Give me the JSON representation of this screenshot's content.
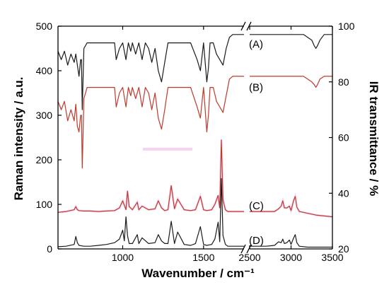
{
  "chart_data": {
    "type": "line",
    "title": "",
    "xlabel": "Wavenumber / cm⁻¹",
    "ylabel_left": "Raman intensity / a.u.",
    "ylabel_right": "IR transmittance / %",
    "x_axis_broken": true,
    "x_segments": [
      {
        "range": [
          600,
          1750
        ],
        "ticks": [
          1000,
          1500
        ],
        "tick_labels": [
          "1000",
          "1500"
        ]
      },
      {
        "range": [
          2500,
          3500
        ],
        "ticks": [
          2500,
          3000,
          3500
        ],
        "tick_labels": [
          "2500",
          "3000",
          "3500"
        ]
      }
    ],
    "ylim_left": [
      0,
      500
    ],
    "yticks_left": [
      0,
      100,
      200,
      300,
      400,
      500
    ],
    "ylim_right": [
      20,
      100
    ],
    "yticks_right": [
      20,
      40,
      60,
      80,
      100
    ],
    "grid": false,
    "colors": {
      "black": "#1a1a1a",
      "red": "#c0392b",
      "red_band": "#f2b6e8"
    },
    "series": [
      {
        "label": "(A)",
        "axis": "right",
        "color": "#1a1a1a",
        "x": [
          600,
          620,
          640,
          660,
          680,
          700,
          710,
          720,
          730,
          740,
          745,
          750,
          760,
          780,
          800,
          820,
          850,
          900,
          950,
          960,
          980,
          1000,
          1020,
          1035,
          1050,
          1060,
          1080,
          1100,
          1120,
          1140,
          1160,
          1180,
          1200,
          1220,
          1240,
          1260,
          1280,
          1300,
          1330,
          1380,
          1420,
          1460,
          1480,
          1500,
          1520,
          1530,
          1540,
          1560,
          1580,
          1600,
          1620,
          1640,
          1660,
          1680,
          1700,
          1750,
          2500,
          2600,
          2700,
          2800,
          2900,
          2950,
          3000,
          3050,
          3100,
          3150,
          3200,
          3250,
          3280,
          3300,
          3320,
          3350,
          3400,
          3450,
          3500
        ],
        "y": [
          91,
          88,
          91,
          86,
          90,
          87,
          90,
          86,
          82,
          88,
          88,
          70,
          92,
          94,
          94,
          94,
          94,
          94,
          94,
          88,
          92,
          94,
          88,
          94,
          91,
          94,
          90,
          94,
          88,
          94,
          92,
          87,
          92,
          84,
          80,
          87,
          94,
          94,
          94,
          94,
          94,
          88,
          84,
          94,
          80,
          85,
          94,
          94,
          90,
          88,
          86,
          92,
          96,
          97,
          97,
          97,
          97,
          97,
          97,
          97,
          97,
          97,
          97,
          97,
          97,
          97,
          96,
          95,
          93,
          92,
          93,
          95,
          97,
          97,
          97
        ]
      },
      {
        "label": "(B)",
        "axis": "right",
        "color": "#c0392b",
        "x": [
          600,
          620,
          640,
          660,
          680,
          700,
          710,
          720,
          730,
          740,
          745,
          750,
          760,
          780,
          800,
          820,
          850,
          900,
          950,
          960,
          980,
          1000,
          1020,
          1035,
          1050,
          1060,
          1080,
          1100,
          1120,
          1140,
          1160,
          1180,
          1200,
          1220,
          1240,
          1260,
          1280,
          1300,
          1330,
          1380,
          1420,
          1460,
          1480,
          1500,
          1520,
          1530,
          1540,
          1560,
          1580,
          1600,
          1620,
          1640,
          1660,
          1680,
          1700,
          1750,
          2500,
          2600,
          2700,
          2800,
          2900,
          2950,
          3000,
          3050,
          3100,
          3150,
          3200,
          3250,
          3280,
          3300,
          3320,
          3350,
          3400,
          3450,
          3500
        ],
        "y": [
          73,
          70,
          73,
          66,
          70,
          66,
          72,
          64,
          62,
          68,
          68,
          49,
          74,
          78,
          78,
          78,
          78,
          78,
          78,
          71,
          76,
          78,
          71,
          78,
          75,
          78,
          74,
          78,
          71,
          78,
          76,
          70,
          76,
          67,
          63,
          70,
          78,
          78,
          78,
          78,
          78,
          71,
          67,
          78,
          62,
          68,
          78,
          78,
          73,
          71,
          69,
          75,
          81,
          82,
          82,
          82,
          82,
          82,
          82,
          82,
          82,
          82,
          82,
          82,
          82,
          82,
          81,
          80,
          79,
          78,
          79,
          81,
          82,
          82,
          82
        ]
      },
      {
        "label": "(C)",
        "axis": "left",
        "color": "#c0392b",
        "x": [
          600,
          650,
          700,
          710,
          720,
          730,
          760,
          800,
          850,
          900,
          950,
          980,
          1000,
          1020,
          1030,
          1040,
          1060,
          1090,
          1100,
          1120,
          1160,
          1200,
          1220,
          1240,
          1260,
          1280,
          1300,
          1320,
          1340,
          1380,
          1420,
          1450,
          1480,
          1500,
          1520,
          1550,
          1570,
          1590,
          1600,
          1610,
          1620,
          1635,
          1650,
          1700,
          1750,
          2500,
          2600,
          2700,
          2800,
          2850,
          2880,
          2900,
          2920,
          2950,
          2980,
          3000,
          3030,
          3050,
          3070,
          3100,
          3200,
          3300,
          3400,
          3500
        ],
        "y": [
          82,
          84,
          88,
          95,
          88,
          86,
          85,
          85,
          84,
          85,
          86,
          92,
          108,
          88,
          130,
          95,
          88,
          105,
          88,
          96,
          88,
          90,
          108,
          92,
          86,
          88,
          142,
          90,
          112,
          88,
          86,
          88,
          118,
          88,
          86,
          88,
          100,
          120,
          92,
          245,
          110,
          88,
          84,
          84,
          84,
          84,
          84,
          84,
          84,
          90,
          96,
          108,
          92,
          92,
          96,
          86,
          108,
          118,
          94,
          84,
          80,
          76,
          74,
          72
        ]
      },
      {
        "label": "(D)",
        "axis": "left",
        "color": "#1a1a1a",
        "x": [
          600,
          650,
          700,
          710,
          720,
          730,
          760,
          800,
          850,
          900,
          950,
          980,
          1000,
          1010,
          1020,
          1030,
          1040,
          1060,
          1090,
          1100,
          1120,
          1160,
          1200,
          1220,
          1240,
          1260,
          1280,
          1300,
          1320,
          1340,
          1380,
          1420,
          1450,
          1480,
          1500,
          1520,
          1550,
          1570,
          1590,
          1600,
          1610,
          1620,
          1635,
          1650,
          1700,
          1750,
          2500,
          2600,
          2700,
          2800,
          2850,
          2880,
          2900,
          2920,
          2950,
          2980,
          3000,
          3030,
          3050,
          3070,
          3100,
          3200,
          3300,
          3400,
          3500
        ],
        "y": [
          5,
          6,
          10,
          28,
          14,
          8,
          6,
          6,
          8,
          10,
          14,
          22,
          42,
          18,
          72,
          30,
          12,
          12,
          32,
          12,
          25,
          12,
          14,
          32,
          18,
          12,
          12,
          62,
          12,
          38,
          10,
          8,
          12,
          50,
          10,
          8,
          10,
          22,
          60,
          16,
          158,
          30,
          10,
          6,
          6,
          6,
          6,
          6,
          6,
          8,
          16,
          14,
          22,
          12,
          14,
          20,
          10,
          24,
          32,
          14,
          6,
          4,
          4,
          4,
          4
        ]
      }
    ],
    "trace_labels": [
      "(A)",
      "(B)",
      "(C)",
      "(D)"
    ]
  }
}
